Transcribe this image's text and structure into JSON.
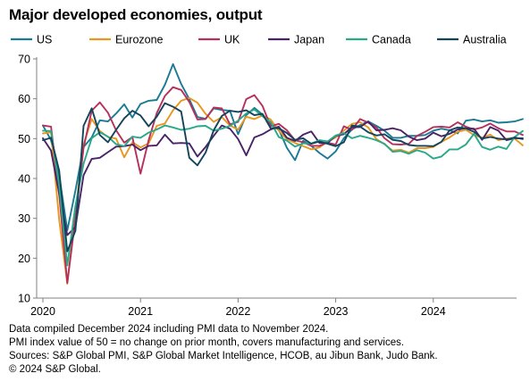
{
  "chart_data": {
    "type": "line",
    "title": "Major developed economies, output",
    "xlabel": "",
    "ylabel": "",
    "ylim": [
      10,
      70
    ],
    "yticks": [
      10,
      20,
      30,
      40,
      50,
      60,
      70
    ],
    "xticks": [
      "2020",
      "2021",
      "2022",
      "2023",
      "2024"
    ],
    "x_start": "2020-01",
    "x_end": "2024-11",
    "grid": false,
    "legend": "top",
    "series": [
      {
        "name": "US",
        "color": "#1a7a93",
        "values": [
          53.3,
          49.6,
          40.9,
          27.0,
          37.0,
          47.9,
          50.3,
          54.6,
          54.3,
          56.3,
          58.6,
          55.3,
          58.7,
          59.5,
          59.7,
          63.5,
          68.7,
          63.7,
          59.9,
          55.4,
          55.0,
          57.6,
          57.2,
          57.0,
          51.1,
          55.9,
          57.7,
          56.0,
          53.6,
          52.3,
          47.7,
          44.6,
          49.5,
          48.2,
          46.4,
          45.0,
          46.8,
          50.1,
          52.3,
          53.4,
          54.3,
          53.2,
          52.0,
          50.2,
          50.2,
          50.7,
          50.7,
          50.9,
          52.0,
          52.5,
          52.1,
          51.3,
          54.5,
          54.8,
          54.3,
          54.6,
          54.0,
          54.1,
          54.3,
          54.9
        ]
      },
      {
        "name": "Eurozone",
        "color": "#e8961e",
        "values": [
          51.3,
          51.6,
          29.7,
          13.6,
          31.9,
          48.5,
          54.9,
          51.9,
          50.4,
          50.0,
          45.3,
          49.1,
          47.8,
          48.8,
          53.2,
          53.8,
          57.1,
          59.5,
          60.2,
          59.0,
          56.2,
          54.2,
          55.4,
          53.3,
          52.3,
          55.5,
          54.9,
          55.8,
          54.8,
          52.0,
          49.9,
          48.9,
          48.1,
          47.3,
          47.8,
          49.3,
          50.3,
          52.0,
          53.7,
          54.1,
          52.8,
          49.9,
          48.6,
          47.0,
          47.2,
          46.5,
          47.6,
          47.6,
          47.9,
          49.2,
          50.3,
          51.7,
          52.2,
          50.9,
          50.2,
          51.0,
          49.6,
          50.0,
          50.0,
          48.3
        ]
      },
      {
        "name": "UK",
        "color": "#b5305d",
        "values": [
          53.3,
          53.0,
          36.0,
          13.8,
          30.0,
          47.7,
          57.0,
          59.1,
          56.5,
          52.1,
          49.0,
          50.4,
          41.2,
          49.6,
          56.4,
          60.7,
          62.9,
          62.2,
          59.2,
          54.8,
          54.9,
          57.8,
          57.6,
          53.6,
          54.2,
          59.9,
          60.9,
          58.2,
          53.1,
          53.7,
          52.1,
          49.6,
          49.1,
          48.2,
          48.2,
          49.0,
          48.5,
          53.1,
          52.2,
          54.9,
          54.0,
          52.8,
          50.1,
          48.6,
          48.5,
          48.7,
          50.7,
          51.7,
          52.9,
          53.0,
          52.8,
          54.1,
          53.0,
          52.3,
          52.8,
          53.8,
          52.6,
          51.8,
          51.8,
          50.9
        ]
      },
      {
        "name": "Japan",
        "color": "#4a2367",
        "values": [
          50.1,
          47.0,
          36.2,
          25.8,
          27.8,
          40.8,
          44.9,
          45.2,
          46.6,
          48.0,
          48.1,
          48.5,
          47.1,
          48.2,
          48.3,
          51.0,
          48.8,
          48.9,
          48.8,
          45.5,
          47.9,
          50.7,
          53.3,
          52.5,
          49.9,
          45.8,
          50.3,
          51.1,
          52.3,
          53.0,
          50.2,
          49.4,
          51.0,
          51.8,
          48.9,
          48.9,
          50.7,
          51.1,
          52.9,
          52.9,
          54.3,
          52.1,
          52.2,
          52.6,
          52.1,
          50.5,
          49.6,
          50.0,
          51.5,
          50.6,
          51.2,
          52.3,
          52.6,
          52.5,
          49.7,
          52.9,
          52.0,
          49.6,
          50.1,
          50.1
        ]
      },
      {
        "name": "Canada",
        "color": "#2aa88a",
        "values": [
          52.0,
          51.9,
          38.2,
          18.2,
          33.2,
          43.7,
          50.1,
          51.6,
          50.5,
          48.6,
          48.1,
          50.5,
          50.2,
          51.5,
          52.3,
          53.3,
          52.8,
          52.2,
          52.5,
          53.1,
          53.2,
          52.0,
          52.5,
          53.2,
          54.5,
          56.3,
          57.3,
          55.6,
          54.2,
          50.4,
          49.5,
          48.0,
          48.8,
          48.8,
          49.6,
          49.3,
          50.8,
          51.4,
          50.1,
          50.7,
          50.2,
          49.6,
          48.7,
          46.7,
          46.9,
          46.2,
          47.1,
          46.5,
          45.0,
          45.5,
          47.3,
          47.3,
          48.5,
          51.2,
          47.9,
          47.2,
          48.0,
          47.4,
          50.4,
          51.9
        ]
      },
      {
        "name": "Australia",
        "color": "#14445c",
        "values": [
          49.6,
          50.2,
          42.0,
          21.7,
          26.9,
          53.2,
          57.6,
          50.9,
          49.1,
          52.2,
          55.1,
          57.0,
          55.8,
          53.1,
          55.5,
          58.9,
          58.0,
          56.8,
          45.2,
          43.3,
          46.5,
          52.1,
          55.7,
          57.0,
          56.7,
          57.1,
          55.9,
          56.2,
          52.6,
          52.6,
          51.4,
          49.7,
          50.1,
          48.7,
          49.3,
          48.7,
          48.1,
          49.1,
          53.3,
          53.0,
          51.6,
          50.8,
          51.1,
          49.7,
          49.4,
          48.4,
          48.2,
          48.2,
          48.1,
          49.2,
          52.1,
          52.8,
          52.6,
          51.7,
          50.0,
          50.4,
          50.0,
          49.8,
          50.3,
          49.9
        ]
      }
    ]
  },
  "notes": [
    "Data compiled December 2024 including PMI data to November 2024.",
    "PMI index value of 50 = no change on prior month, covers manufacturing and services.",
    "Sources: S&P Global PMI, S&P Global Market Intelligence, HCOB, au Jibun Bank, Judo Bank.",
    "© 2024 S&P Global."
  ]
}
